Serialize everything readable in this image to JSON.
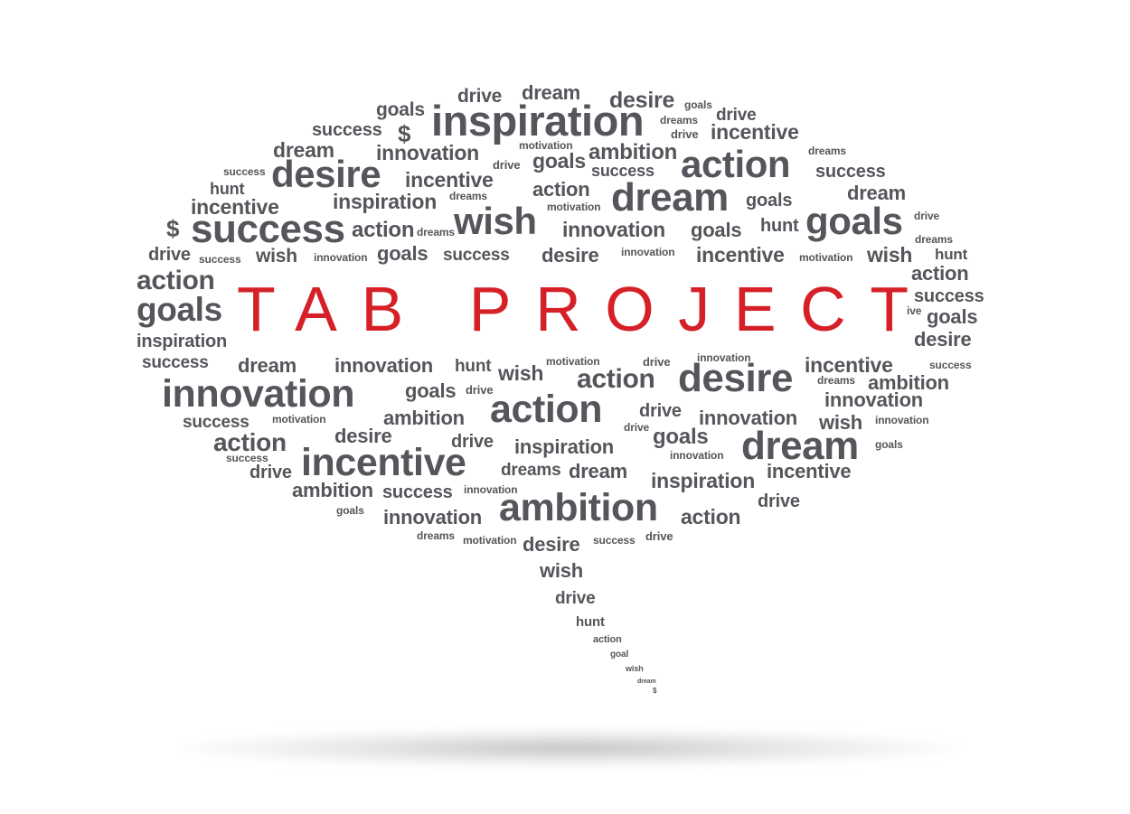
{
  "title": "TAB PROJECT",
  "colors": {
    "title": "#d62027",
    "words": "#55565b",
    "background": "#ffffff"
  },
  "words": [
    "drive",
    "dream",
    "desire",
    "goals",
    "goals",
    "inspiration",
    "dreams",
    "drive",
    "success",
    "$",
    "drive",
    "incentive",
    "dream",
    "innovation",
    "motivation",
    "ambition",
    "dreams",
    "success",
    "desire",
    "drive",
    "goals",
    "action",
    "success",
    "hunt",
    "incentive",
    "dreams",
    "action",
    "dream",
    "success",
    "dream",
    "incentive",
    "inspiration",
    "motivation",
    "$",
    "success",
    "action",
    "dreams",
    "wish",
    "innovation",
    "hunt",
    "goals",
    "drive",
    "drive",
    "success",
    "wish",
    "innovation",
    "goals",
    "success",
    "desire",
    "innovation",
    "incentive",
    "motivation",
    "wish",
    "hunt",
    "dreams",
    "action",
    "action",
    "goals",
    "success",
    "ive",
    "goals",
    "inspiration",
    "desire",
    "success",
    "dream",
    "innovation",
    "hunt",
    "wish",
    "motivation",
    "drive",
    "innovation",
    "incentive",
    "success",
    "innovation",
    "goals",
    "drive",
    "action",
    "desire",
    "dreams",
    "ambition",
    "success",
    "motivation",
    "ambition",
    "action",
    "drive",
    "innovation",
    "wish",
    "innovation",
    "action",
    "desire",
    "drive",
    "inspiration",
    "drive",
    "goals",
    "dream",
    "goals",
    "success",
    "incentive",
    "innovation",
    "dreams",
    "dream",
    "inspiration",
    "incentive",
    "drive",
    "ambition",
    "success",
    "innovation",
    "ambition",
    "action",
    "drive",
    "goals",
    "innovation",
    "dreams",
    "motivation",
    "desire",
    "success",
    "drive",
    "wish",
    "drive",
    "hunt",
    "action",
    "goal",
    "wish",
    "dream",
    "$"
  ]
}
